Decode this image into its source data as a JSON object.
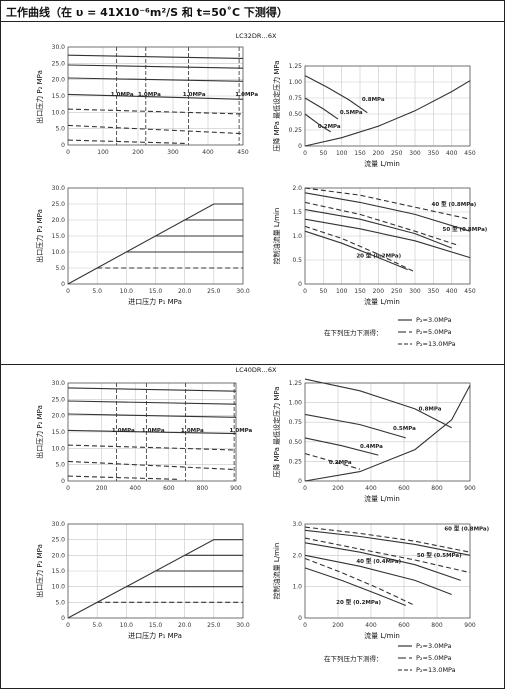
{
  "header": {
    "title": "工作曲线（在 υ = 41X10⁻⁶m²/S 和 t=50˚C 下测得）"
  },
  "sections": [
    {
      "model": "LC32DR…6X",
      "legend": {
        "caption": "在下列压力下测得：",
        "items": [
          {
            "label": "P₂=3.0MPa",
            "dash": "solid"
          },
          {
            "label": "P₂=5.0MPa",
            "dash": "long"
          },
          {
            "label": "P₂=13.0MPa",
            "dash": "dashed"
          }
        ]
      }
    },
    {
      "model": "LC40DR…6X",
      "legend": {
        "caption": "在下列压力下测得：",
        "items": [
          {
            "label": "P₂=3.0MPa",
            "dash": "solid"
          },
          {
            "label": "P₂=5.0MPa",
            "dash": "long"
          },
          {
            "label": "P₂=13.0MPa",
            "dash": "dashed"
          }
        ]
      }
    }
  ],
  "chart_data": [
    {
      "section": 0,
      "type": "line",
      "xlabel": "",
      "ylabel": "出口压力 P₂ MPa",
      "xlim": [
        0,
        450
      ],
      "ylim": [
        0,
        30
      ],
      "xticks": [
        "0",
        "100",
        "200",
        "300",
        "400",
        "450"
      ],
      "yticks": [
        "0",
        "5.0",
        "10.0",
        "15.0",
        "20.0",
        "25.0",
        "30.0"
      ],
      "series": [
        {
          "x": [
            0,
            450
          ],
          "y": [
            27.5,
            26.5
          ]
        },
        {
          "x": [
            0,
            450
          ],
          "y": [
            24.5,
            23.5
          ]
        },
        {
          "x": [
            0,
            450
          ],
          "y": [
            20.5,
            19.5
          ]
        },
        {
          "x": [
            0,
            450
          ],
          "y": [
            15.5,
            14.0
          ]
        },
        {
          "x": [
            0,
            450
          ],
          "y": [
            11.0,
            9.5
          ]
        },
        {
          "x": [
            0,
            450
          ],
          "y": [
            6.0,
            3.5
          ]
        },
        {
          "x": [
            0,
            300
          ],
          "y": [
            1.5,
            0.5
          ]
        }
      ],
      "dividers_x": [
        125,
        200,
        310,
        440
      ],
      "annotations": [
        {
          "text": "1.0MPa",
          "x": 110,
          "y": 15
        },
        {
          "text": "1.0MPa",
          "x": 180,
          "y": 15
        },
        {
          "text": "1.0MPa",
          "x": 295,
          "y": 15
        },
        {
          "text": "1.0MPa",
          "x": 430,
          "y": 15
        }
      ]
    },
    {
      "section": 0,
      "type": "line",
      "xlabel": "流量 L/min",
      "ylabel": "压降 MPa 最低设定压力 MPa",
      "xlim": [
        0,
        450
      ],
      "ylim": [
        0,
        1.25
      ],
      "xticks": [
        "0",
        "50",
        "100",
        "150",
        "200",
        "250",
        "300",
        "350",
        "400",
        "450"
      ],
      "yticks": [
        "0",
        "0.25",
        "0.50",
        "0.75",
        "1.00",
        "1.25"
      ],
      "series": [
        {
          "x": [
            0,
            100,
            200,
            300,
            400,
            450
          ],
          "y": [
            0,
            0.13,
            0.31,
            0.55,
            0.85,
            1.02
          ]
        },
        {
          "x": [
            0,
            60,
            120,
            170
          ],
          "y": [
            1.1,
            0.92,
            0.72,
            0.52
          ]
        },
        {
          "x": [
            0,
            50,
            90
          ],
          "y": [
            0.75,
            0.58,
            0.42
          ]
        },
        {
          "x": [
            0,
            40,
            70
          ],
          "y": [
            0.5,
            0.33,
            0.22
          ]
        }
      ],
      "annotations": [
        {
          "text": "0.8MPa",
          "x": 155,
          "y": 0.7
        },
        {
          "text": "0.5MPa",
          "x": 95,
          "y": 0.5
        },
        {
          "text": "0.2MPa",
          "x": 35,
          "y": 0.28
        }
      ]
    },
    {
      "section": 0,
      "type": "line",
      "xlabel": "进口压力 P₁ MPa",
      "ylabel": "出口压力 P₂ MPa",
      "xlim": [
        0,
        30
      ],
      "ylim": [
        0,
        30
      ],
      "xticks": [
        "0",
        "5.0",
        "10.0",
        "15.0",
        "20.0",
        "25.0",
        "30.0"
      ],
      "yticks": [
        "0",
        "5.0",
        "10.0",
        "15.0",
        "20.0",
        "25.0",
        "30.0"
      ],
      "series": [
        {
          "x": [
            0,
            25,
            30
          ],
          "y": [
            0,
            25,
            25
          ]
        },
        {
          "x": [
            20,
            30
          ],
          "y": [
            20,
            20
          ]
        },
        {
          "x": [
            15,
            30
          ],
          "y": [
            15,
            15
          ]
        },
        {
          "x": [
            10,
            30
          ],
          "y": [
            10,
            10
          ]
        },
        {
          "x": [
            5,
            30
          ],
          "y": [
            5,
            5
          ]
        }
      ]
    },
    {
      "section": 0,
      "type": "line",
      "xlabel": "流量 L/min",
      "ylabel": "控制油流量 L/min",
      "xlim": [
        0,
        450
      ],
      "ylim": [
        0,
        2.0
      ],
      "xticks": [
        "0",
        "50",
        "100",
        "150",
        "200",
        "250",
        "300",
        "350",
        "400",
        "450"
      ],
      "yticks": [
        "0",
        "0.5",
        "1.0",
        "1.5",
        "2.0"
      ],
      "series": [
        {
          "x": [
            0,
            150,
            300,
            450
          ],
          "y": [
            1.9,
            1.7,
            1.45,
            1.1
          ]
        },
        {
          "x": [
            0,
            150,
            300,
            400
          ],
          "y": [
            1.55,
            1.35,
            1.05,
            0.75
          ]
        },
        {
          "x": [
            0,
            150,
            300,
            450
          ],
          "y": [
            1.35,
            1.15,
            0.9,
            0.55
          ]
        },
        {
          "x": [
            0,
            100,
            200,
            280
          ],
          "y": [
            1.1,
            0.85,
            0.55,
            0.3
          ]
        },
        {
          "x": [
            0,
            150,
            300,
            450
          ],
          "y": [
            2.0,
            1.85,
            1.6,
            1.35
          ]
        },
        {
          "x": [
            0,
            150,
            300,
            420
          ],
          "y": [
            1.7,
            1.45,
            1.1,
            0.8
          ]
        },
        {
          "x": [
            0,
            100,
            200,
            300
          ],
          "y": [
            1.2,
            0.95,
            0.62,
            0.25
          ]
        }
      ],
      "annotations": [
        {
          "text": "40 型 (0.8MPa)",
          "x": 345,
          "y": 1.62
        },
        {
          "text": "50 型 (0.8MPa)",
          "x": 375,
          "y": 1.1
        },
        {
          "text": "20 型 (0.2MPa)",
          "x": 140,
          "y": 0.55
        }
      ]
    },
    {
      "section": 1,
      "type": "line",
      "xlabel": "",
      "ylabel": "出口压力 P₂ MPa",
      "xlim": [
        0,
        900
      ],
      "ylim": [
        0,
        30
      ],
      "xticks": [
        "0",
        "200",
        "400",
        "600",
        "800",
        "900"
      ],
      "yticks": [
        "0",
        "5.0",
        "10.0",
        "15.0",
        "20.0",
        "25.0",
        "30.0"
      ],
      "series": [
        {
          "x": [
            0,
            900
          ],
          "y": [
            28.5,
            27.5
          ]
        },
        {
          "x": [
            0,
            900
          ],
          "y": [
            24.5,
            23.5
          ]
        },
        {
          "x": [
            0,
            900
          ],
          "y": [
            20.5,
            19.5
          ]
        },
        {
          "x": [
            0,
            900
          ],
          "y": [
            15.5,
            14.5
          ]
        },
        {
          "x": [
            0,
            900
          ],
          "y": [
            11.0,
            9.5
          ]
        },
        {
          "x": [
            0,
            900
          ],
          "y": [
            6.0,
            3.5
          ]
        },
        {
          "x": [
            0,
            600
          ],
          "y": [
            1.5,
            0.5
          ]
        }
      ],
      "dividers_x": [
        260,
        420,
        630,
        890
      ],
      "annotations": [
        {
          "text": "1.0MPa",
          "x": 235,
          "y": 15
        },
        {
          "text": "1.0MPa",
          "x": 395,
          "y": 15
        },
        {
          "text": "1.0MPa",
          "x": 605,
          "y": 15
        },
        {
          "text": "1.0MPa",
          "x": 865,
          "y": 15
        }
      ]
    },
    {
      "section": 1,
      "type": "line",
      "xlabel": "流量 L/min",
      "ylabel": "压降 MPa 最低设定压力 MPa",
      "xlim": [
        0,
        900
      ],
      "ylim": [
        0,
        1.25
      ],
      "xticks": [
        "0",
        "200",
        "400",
        "600",
        "800",
        "900"
      ],
      "yticks": [
        "0",
        "0.25",
        "0.50",
        "0.75",
        "1.00",
        "1.25"
      ],
      "series": [
        {
          "x": [
            0,
            300,
            600,
            800,
            900
          ],
          "y": [
            0,
            0.12,
            0.4,
            0.78,
            1.22
          ]
        },
        {
          "x": [
            0,
            300,
            600,
            800
          ],
          "y": [
            1.3,
            1.15,
            0.92,
            0.68
          ]
        },
        {
          "x": [
            0,
            300,
            550
          ],
          "y": [
            0.85,
            0.72,
            0.55
          ]
        },
        {
          "x": [
            0,
            200,
            400
          ],
          "y": [
            0.55,
            0.45,
            0.33
          ]
        },
        {
          "x": [
            0,
            150,
            300
          ],
          "y": [
            0.35,
            0.25,
            0.15
          ]
        }
      ],
      "annotations": [
        {
          "text": "0.8MPa",
          "x": 620,
          "y": 0.9
        },
        {
          "text": "0.5MPa",
          "x": 480,
          "y": 0.65
        },
        {
          "text": "0.4MPa",
          "x": 300,
          "y": 0.42
        },
        {
          "text": "0.2MPa",
          "x": 130,
          "y": 0.22
        }
      ]
    },
    {
      "section": 1,
      "type": "line",
      "xlabel": "进口压力 P₁ MPa",
      "ylabel": "出口压力 P₂ MPa",
      "xlim": [
        0,
        30
      ],
      "ylim": [
        0,
        30
      ],
      "xticks": [
        "0",
        "5.0",
        "10.0",
        "15.0",
        "20.0",
        "25.0",
        "30.0"
      ],
      "yticks": [
        "0",
        "5.0",
        "10.0",
        "15.0",
        "20.0",
        "25.0",
        "30.0"
      ],
      "series": [
        {
          "x": [
            0,
            25,
            30
          ],
          "y": [
            0,
            25,
            25
          ]
        },
        {
          "x": [
            20,
            30
          ],
          "y": [
            20,
            20
          ]
        },
        {
          "x": [
            15,
            30
          ],
          "y": [
            15,
            15
          ]
        },
        {
          "x": [
            10,
            30
          ],
          "y": [
            10,
            10
          ]
        },
        {
          "x": [
            5,
            30
          ],
          "y": [
            5,
            5
          ]
        }
      ]
    },
    {
      "section": 1,
      "type": "line",
      "xlabel": "流量 L/min",
      "ylabel": "控制油流量 L/min",
      "xlim": [
        0,
        900
      ],
      "ylim": [
        0,
        3.0
      ],
      "xticks": [
        "0",
        "200",
        "400",
        "600",
        "800",
        "900"
      ],
      "yticks": [
        "0",
        "1.0",
        "2.0",
        "3.0"
      ],
      "series": [
        {
          "x": [
            0,
            300,
            600,
            900
          ],
          "y": [
            2.8,
            2.6,
            2.35,
            2.0
          ]
        },
        {
          "x": [
            0,
            300,
            600,
            850
          ],
          "y": [
            2.4,
            2.1,
            1.7,
            1.2
          ]
        },
        {
          "x": [
            0,
            300,
            600,
            800
          ],
          "y": [
            2.0,
            1.65,
            1.2,
            0.75
          ]
        },
        {
          "x": [
            0,
            200,
            400,
            550
          ],
          "y": [
            1.6,
            1.2,
            0.75,
            0.4
          ]
        },
        {
          "x": [
            0,
            300,
            600,
            900
          ],
          "y": [
            2.9,
            2.7,
            2.45,
            2.1
          ]
        },
        {
          "x": [
            0,
            300,
            600,
            900
          ],
          "y": [
            2.55,
            2.2,
            1.85,
            1.45
          ]
        },
        {
          "x": [
            0,
            200,
            400,
            600
          ],
          "y": [
            1.9,
            1.45,
            0.95,
            0.4
          ]
        }
      ],
      "annotations": [
        {
          "text": "60 型 (0.8MPa)",
          "x": 760,
          "y": 2.8
        },
        {
          "text": "50 型 (0.5MPa)",
          "x": 610,
          "y": 1.95
        },
        {
          "text": "40 型 (0.4MPa)",
          "x": 280,
          "y": 1.75
        },
        {
          "text": "20 型 (0.2MPa)",
          "x": 170,
          "y": 0.45
        }
      ]
    }
  ]
}
